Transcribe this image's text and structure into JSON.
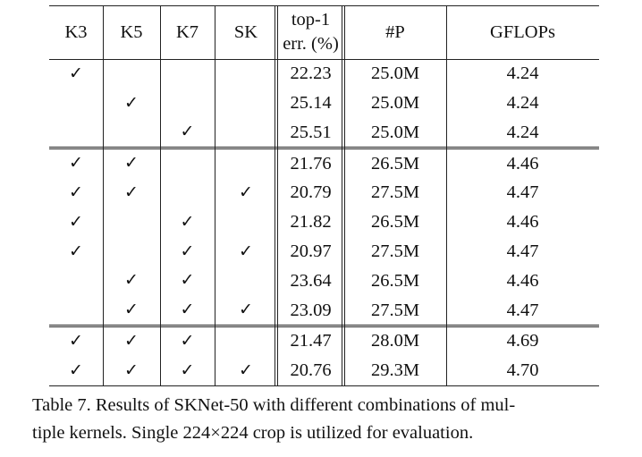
{
  "table": {
    "headers": [
      "K3",
      "K5",
      "K7",
      "SK",
      [
        "top-1",
        "err. (%)"
      ],
      "#P",
      "GFLOPs"
    ],
    "groups": [
      [
        [
          "✓",
          "",
          "",
          "",
          "22.23",
          "25.0M",
          "4.24"
        ],
        [
          "",
          "✓",
          "",
          "",
          "25.14",
          "25.0M",
          "4.24"
        ],
        [
          "",
          "",
          "✓",
          "",
          "25.51",
          "25.0M",
          "4.24"
        ]
      ],
      [
        [
          "✓",
          "✓",
          "",
          "",
          "21.76",
          "26.5M",
          "4.46"
        ],
        [
          "✓",
          "✓",
          "",
          "✓",
          "20.79",
          "27.5M",
          "4.47"
        ],
        [
          "✓",
          "",
          "✓",
          "",
          "21.82",
          "26.5M",
          "4.46"
        ],
        [
          "✓",
          "",
          "✓",
          "✓",
          "20.97",
          "27.5M",
          "4.47"
        ],
        [
          "",
          "✓",
          "✓",
          "",
          "23.64",
          "26.5M",
          "4.46"
        ],
        [
          "",
          "✓",
          "✓",
          "✓",
          "23.09",
          "27.5M",
          "4.47"
        ]
      ],
      [
        [
          "✓",
          "✓",
          "✓",
          "",
          "21.47",
          "28.0M",
          "4.69"
        ],
        [
          "✓",
          "✓",
          "✓",
          "✓",
          "20.76",
          "29.3M",
          "4.70"
        ]
      ]
    ]
  },
  "caption": {
    "line1": "Table 7. Results of SKNet-50 with different combinations of mul-",
    "line2": "tiple kernels. Single 224×224 crop is utilized for evaluation."
  }
}
